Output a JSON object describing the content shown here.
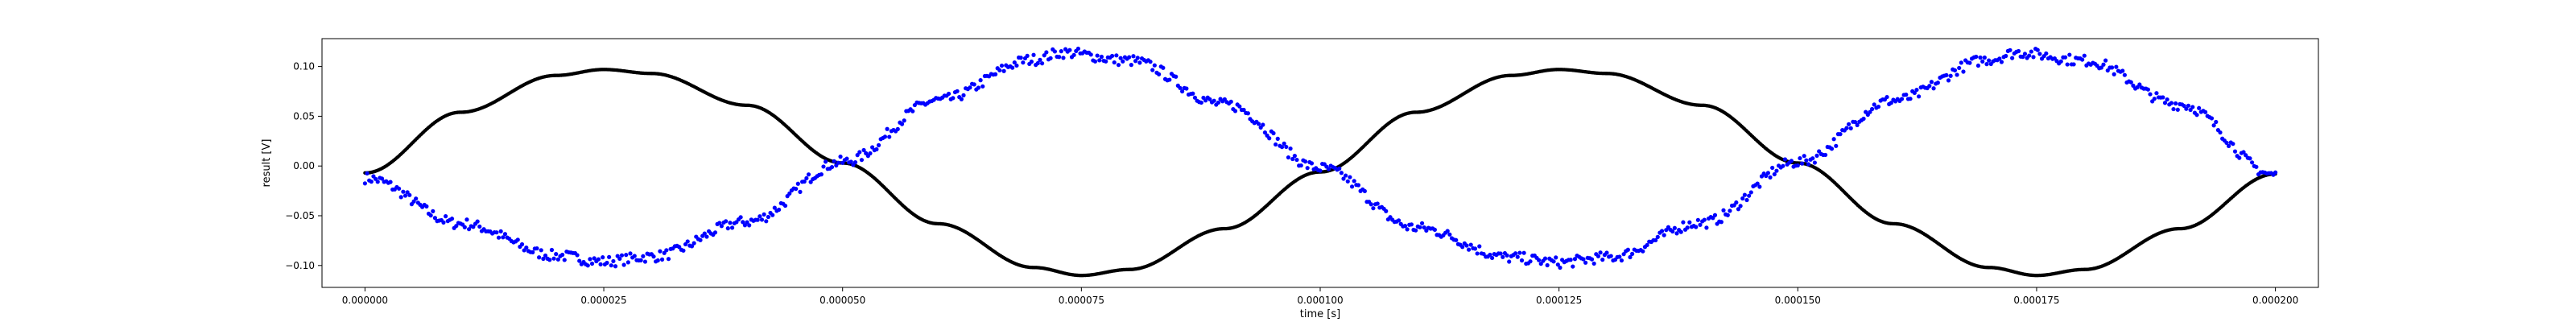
{
  "chart_data": {
    "type": "scatter",
    "title": "",
    "xlabel": "time [s]",
    "ylabel": "result [V]",
    "xlim": [
      -4.5e-06,
      0.0002045
    ],
    "ylim": [
      -0.122,
      0.128
    ],
    "x_ticks": [
      0.0,
      2.5e-05,
      5e-05,
      7.5e-05,
      0.0001,
      0.000125,
      0.00015,
      0.000175,
      0.0002
    ],
    "x_tick_labels": [
      "0.000000",
      "0.000025",
      "0.000050",
      "0.000075",
      "0.000100",
      "0.000125",
      "0.000150",
      "0.000175",
      "0.000200"
    ],
    "y_ticks": [
      -0.1,
      -0.05,
      0.0,
      0.05,
      0.1
    ],
    "y_tick_labels": [
      "−0.10",
      "−0.05",
      "0.00",
      "0.05",
      "0.10"
    ],
    "grid": false,
    "legend": "none",
    "series": [
      {
        "color": "#000000",
        "marker": "dot",
        "dense": true,
        "x": [
          0.0,
          1e-05,
          2e-05,
          2.5e-05,
          3e-05,
          4e-05,
          5e-05,
          6e-05,
          7e-05,
          7.5e-05,
          8e-05,
          9e-05,
          0.0001,
          0.00011,
          0.00012,
          0.000125,
          0.00013,
          0.00014,
          0.00015,
          0.00016,
          0.00017,
          0.000175,
          0.00018,
          0.00019,
          0.0002
        ],
        "y": [
          -0.007,
          0.054,
          0.091,
          0.097,
          0.093,
          0.061,
          0.003,
          -0.058,
          -0.102,
          -0.11,
          -0.104,
          -0.063,
          -0.006,
          0.054,
          0.091,
          0.097,
          0.093,
          0.061,
          0.003,
          -0.058,
          -0.102,
          -0.11,
          -0.104,
          -0.063,
          -0.008
        ]
      },
      {
        "color": "#0000ff",
        "marker": "dot",
        "noisy": true,
        "x": [
          0.0,
          1e-05,
          2e-05,
          2.5e-05,
          3e-05,
          4e-05,
          5e-05,
          6e-05,
          7e-05,
          7.3e-05,
          8e-05,
          9e-05,
          0.0001,
          0.00011,
          0.00012,
          0.000125,
          0.00013,
          0.00014,
          0.00015,
          0.00016,
          0.00017,
          0.000173,
          0.00018,
          0.00019,
          0.0002
        ],
        "y": [
          -0.012,
          -0.058,
          -0.09,
          -0.096,
          -0.091,
          -0.056,
          0.004,
          0.066,
          0.107,
          0.114,
          0.106,
          0.062,
          -0.002,
          -0.062,
          -0.092,
          -0.097,
          -0.092,
          -0.057,
          0.004,
          0.066,
          0.107,
          0.114,
          0.106,
          0.062,
          -0.009
        ]
      }
    ]
  }
}
